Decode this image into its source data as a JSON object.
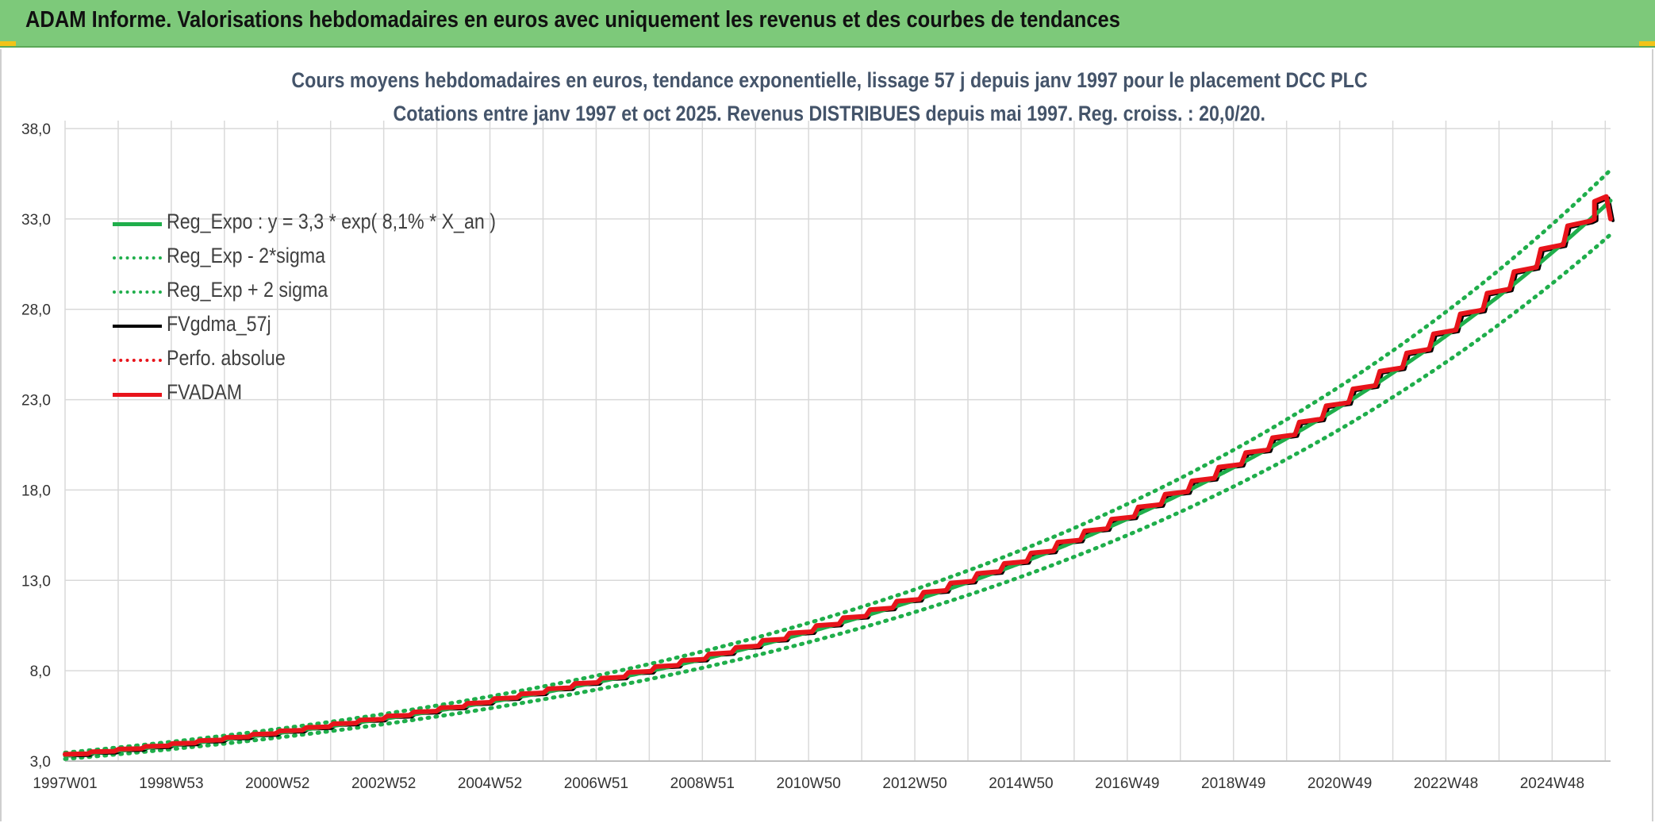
{
  "header": {
    "title": "ADAM Informe. Valorisations hebdomadaires en euros avec uniquement les revenus et des courbes de tendances"
  },
  "colors": {
    "header_bg": "#7dc97a",
    "reg_expo": "#1fae4b",
    "sigma_bands": "#1fae4b",
    "fvgdma": "#000000",
    "perfo": "#e8141b",
    "fvadam": "#e8141b",
    "grid": "#d9d9d9"
  },
  "chart_data": {
    "type": "line",
    "title": "Cours moyens hebdomadaires en euros, tendance exponentielle, lissage 57 j depuis janv 1997 pour le placement DCC PLC",
    "subtitle": "Cotations entre janv 1997 et oct 2025. Revenus DISTRIBUES depuis mai 1997. Reg. croiss. : 20,0/20.",
    "xlabel": "",
    "ylabel": "",
    "x_tick_labels": [
      "1997W01",
      "1998W53",
      "2000W52",
      "2002W52",
      "2004W52",
      "2006W51",
      "2008W51",
      "2010W50",
      "2012W50",
      "2014W50",
      "2016W49",
      "2018W49",
      "2020W49",
      "2022W48",
      "2024W48"
    ],
    "x_range": [
      "1997W01",
      "2025W43"
    ],
    "y_ticks": [
      "3,0",
      "8,0",
      "13,0",
      "18,0",
      "23,0",
      "28,0",
      "33,0",
      "38,0"
    ],
    "ylim": [
      3.0,
      38.0
    ],
    "grid": true,
    "legend_position": "top-left",
    "regression": {
      "a": 3.3,
      "rate": 0.081
    },
    "series": [
      {
        "name": "Reg_Expo : y = 3,3 * exp( 8,1% *  X_an )",
        "style": "solid",
        "color": "#1fae4b",
        "width": 5,
        "x": [
          1997,
          1999,
          2001,
          2003,
          2005,
          2007,
          2009,
          2011,
          2013,
          2015,
          2017,
          2019,
          2021,
          2023,
          2025,
          2025.8
        ],
        "y": [
          3.3,
          3.9,
          4.6,
          5.4,
          6.4,
          7.5,
          8.8,
          10.4,
          12.3,
          14.5,
          17.0,
          20.1,
          23.6,
          27.8,
          32.8,
          34.5
        ]
      },
      {
        "name": "Reg_Exp - 2*sigma",
        "style": "dotted",
        "color": "#1fae4b",
        "width": 5,
        "x": [
          1997,
          1999,
          2001,
          2003,
          2005,
          2007,
          2009,
          2011,
          2013,
          2015,
          2017,
          2019,
          2021,
          2023,
          2025,
          2025.8
        ],
        "y": [
          3.1,
          3.7,
          4.4,
          5.1,
          6.1,
          7.1,
          8.4,
          9.9,
          11.6,
          13.7,
          16.2,
          19.1,
          22.4,
          26.4,
          31.1,
          32.8
        ]
      },
      {
        "name": "Reg_Exp + 2 sigma",
        "style": "dotted",
        "color": "#1fae4b",
        "width": 5,
        "x": [
          1997,
          1999,
          2001,
          2003,
          2005,
          2007,
          2009,
          2011,
          2013,
          2015,
          2017,
          2019,
          2021,
          2023,
          2025,
          2025.8
        ],
        "y": [
          3.4,
          4.1,
          4.8,
          5.7,
          6.7,
          7.9,
          9.3,
          10.9,
          12.9,
          15.2,
          17.9,
          21.1,
          24.8,
          29.2,
          34.5,
          36.3
        ]
      },
      {
        "name": "FVgdma_57j",
        "style": "solid",
        "color": "#000000",
        "width": 4,
        "x": [
          1997,
          1999,
          2001,
          2003,
          2005,
          2007,
          2009,
          2011,
          2013,
          2015,
          2017,
          2019,
          2021,
          2023,
          2025,
          2025.8
        ],
        "y": [
          3.4,
          3.9,
          4.6,
          5.4,
          6.4,
          7.5,
          8.9,
          10.5,
          12.4,
          14.6,
          17.2,
          20.2,
          23.8,
          28.0,
          32.9,
          33.0
        ]
      },
      {
        "name": "Perfo. absolue",
        "style": "dotted",
        "color": "#e8141b",
        "width": 4,
        "x": [
          1997,
          1999,
          2001,
          2003,
          2005,
          2007,
          2009,
          2011,
          2013,
          2015,
          2017,
          2019,
          2021,
          2023,
          2025,
          2025.8
        ],
        "y": [
          3.4,
          3.9,
          4.6,
          5.4,
          6.4,
          7.5,
          8.9,
          10.5,
          12.4,
          14.6,
          17.2,
          20.2,
          23.8,
          28.0,
          32.9,
          33.0
        ]
      },
      {
        "name": "FVADAM",
        "style": "step",
        "color": "#e8141b",
        "width": 6,
        "x": [
          1997,
          1999,
          2001,
          2003,
          2005,
          2007,
          2009,
          2011,
          2013,
          2015,
          2017,
          2019,
          2021,
          2023,
          2025,
          2025.8
        ],
        "y": [
          3.4,
          3.9,
          4.6,
          5.4,
          6.4,
          7.5,
          8.9,
          10.5,
          12.4,
          14.6,
          17.2,
          20.2,
          23.8,
          28.0,
          33.0,
          33.0
        ]
      }
    ]
  }
}
